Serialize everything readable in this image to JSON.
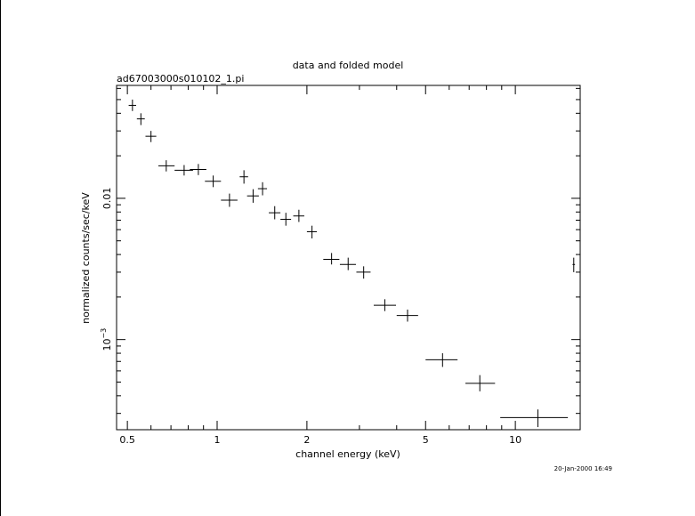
{
  "chart_data": {
    "type": "scatter",
    "title": "data and folded model",
    "subtitle": "ad67003000s010102_1.pi",
    "xlabel": "channel energy (keV)",
    "ylabel": "normalized counts/sec/keV",
    "timestamp": "20-Jan-2000 16:49",
    "x_scale": "log",
    "y_scale": "log",
    "xlim": [
      0.46,
      16.5
    ],
    "ylim": [
      0.00023,
      0.063
    ],
    "x_ticks": [
      {
        "value": 0.5,
        "label": "0.5"
      },
      {
        "value": 1,
        "label": "1"
      },
      {
        "value": 2,
        "label": "2"
      },
      {
        "value": 5,
        "label": "5"
      },
      {
        "value": 10,
        "label": "10"
      }
    ],
    "y_ticks": [
      {
        "value": 0.01,
        "label": "0.01",
        "exp": ""
      },
      {
        "value": 0.001,
        "label": "10",
        "exp": "−3"
      }
    ],
    "series": [
      {
        "points": [
          {
            "x": 0.52,
            "xlo": 0.505,
            "xhi": 0.535,
            "y": 0.0455,
            "ylo": 0.0415,
            "yhi": 0.05
          },
          {
            "x": 0.555,
            "xlo": 0.538,
            "xhi": 0.572,
            "y": 0.0365,
            "ylo": 0.033,
            "yhi": 0.04
          },
          {
            "x": 0.6,
            "xlo": 0.575,
            "xhi": 0.625,
            "y": 0.0275,
            "ylo": 0.025,
            "yhi": 0.03
          },
          {
            "x": 0.675,
            "xlo": 0.635,
            "xhi": 0.72,
            "y": 0.017,
            "ylo": 0.0155,
            "yhi": 0.0186
          },
          {
            "x": 0.775,
            "xlo": 0.72,
            "xhi": 0.83,
            "y": 0.0158,
            "ylo": 0.0145,
            "yhi": 0.0172
          },
          {
            "x": 0.865,
            "xlo": 0.81,
            "xhi": 0.92,
            "y": 0.016,
            "ylo": 0.0146,
            "yhi": 0.0175
          },
          {
            "x": 0.97,
            "xlo": 0.91,
            "xhi": 1.03,
            "y": 0.0132,
            "ylo": 0.012,
            "yhi": 0.0145
          },
          {
            "x": 1.1,
            "xlo": 1.03,
            "xhi": 1.17,
            "y": 0.0097,
            "ylo": 0.0087,
            "yhi": 0.0108
          },
          {
            "x": 1.23,
            "xlo": 1.19,
            "xhi": 1.27,
            "y": 0.0142,
            "ylo": 0.0127,
            "yhi": 0.0158
          },
          {
            "x": 1.32,
            "xlo": 1.26,
            "xhi": 1.38,
            "y": 0.0104,
            "ylo": 0.0093,
            "yhi": 0.0116
          },
          {
            "x": 1.42,
            "xlo": 1.37,
            "xhi": 1.47,
            "y": 0.0117,
            "ylo": 0.0105,
            "yhi": 0.013
          },
          {
            "x": 1.56,
            "xlo": 1.49,
            "xhi": 1.63,
            "y": 0.0079,
            "ylo": 0.0071,
            "yhi": 0.0088
          },
          {
            "x": 1.7,
            "xlo": 1.63,
            "xhi": 1.77,
            "y": 0.0071,
            "ylo": 0.0064,
            "yhi": 0.0079
          },
          {
            "x": 1.88,
            "xlo": 1.8,
            "xhi": 1.96,
            "y": 0.0075,
            "ylo": 0.0068,
            "yhi": 0.0083
          },
          {
            "x": 2.08,
            "xlo": 2.0,
            "xhi": 2.16,
            "y": 0.0058,
            "ylo": 0.0052,
            "yhi": 0.0064
          },
          {
            "x": 2.42,
            "xlo": 2.27,
            "xhi": 2.57,
            "y": 0.0037,
            "ylo": 0.0034,
            "yhi": 0.0041
          },
          {
            "x": 2.75,
            "xlo": 2.58,
            "xhi": 2.92,
            "y": 0.0034,
            "ylo": 0.0031,
            "yhi": 0.0038
          },
          {
            "x": 3.1,
            "xlo": 2.93,
            "xhi": 3.27,
            "y": 0.003,
            "ylo": 0.0027,
            "yhi": 0.0033
          },
          {
            "x": 3.65,
            "xlo": 3.35,
            "xhi": 3.98,
            "y": 0.00175,
            "ylo": 0.00159,
            "yhi": 0.00193
          },
          {
            "x": 4.35,
            "xlo": 4.0,
            "xhi": 4.72,
            "y": 0.00148,
            "ylo": 0.00134,
            "yhi": 0.00163
          },
          {
            "x": 5.7,
            "xlo": 5.0,
            "xhi": 6.4,
            "y": 0.00072,
            "ylo": 0.00064,
            "yhi": 0.0008
          },
          {
            "x": 7.6,
            "xlo": 6.8,
            "xhi": 8.55,
            "y": 0.00049,
            "ylo": 0.00043,
            "yhi": 0.00056
          },
          {
            "x": 11.9,
            "xlo": 8.9,
            "xhi": 15.0,
            "y": 0.00028,
            "ylo": 0.00024,
            "yhi": 0.00032
          },
          {
            "x": 15.7,
            "xlo": 15.55,
            "xhi": 15.85,
            "y": 0.0034,
            "ylo": 0.003,
            "yhi": 0.0038
          }
        ]
      }
    ]
  }
}
